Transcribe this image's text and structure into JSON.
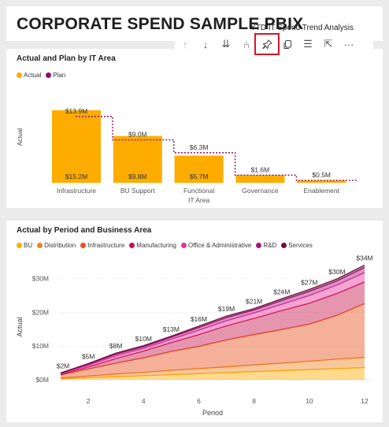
{
  "report": {
    "title": "CORPORATE SPEND SAMPLE PBIX",
    "subtitle": "YTD IT Spend Trend Analysis"
  },
  "toolbar": [
    {
      "name": "drill-up-icon",
      "glyph": "↑",
      "enabled": false
    },
    {
      "name": "drill-down-icon",
      "glyph": "↓",
      "enabled": true
    },
    {
      "name": "expand-all-icon",
      "glyph": "⇊",
      "enabled": true
    },
    {
      "name": "expand-hierarchy-icon",
      "glyph": "⑃",
      "enabled": true
    },
    {
      "name": "pin-visual-icon",
      "glyph": "pin",
      "enabled": true,
      "highlighted": true
    },
    {
      "name": "copy-visual-icon",
      "glyph": "copy",
      "enabled": true
    },
    {
      "name": "filter-icon",
      "glyph": "☰",
      "enabled": true
    },
    {
      "name": "focus-mode-icon",
      "glyph": "⇱",
      "enabled": true
    },
    {
      "name": "more-options-icon",
      "glyph": "···",
      "enabled": true
    }
  ],
  "visual1": {
    "title": "Actual and Plan by IT Area",
    "legend": [
      {
        "label": "Actual",
        "color": "#FFAC00"
      },
      {
        "label": "Plan",
        "color": "#8E1063"
      }
    ],
    "chart_data": {
      "type": "bar",
      "title": "Actual and Plan by IT Area",
      "ylabel": "Actual",
      "xlabel": "IT Area",
      "categories": [
        "Infrastructure",
        "BU Support",
        "Functional IT Area",
        "Governance",
        "Enablement"
      ],
      "category_lines": [
        [
          "Infrastructure"
        ],
        [
          "BU Support"
        ],
        [
          "Functional",
          "IT Area"
        ],
        [
          "Governance"
        ],
        [
          "Enablement"
        ]
      ],
      "series": [
        {
          "name": "Actual",
          "color": "#FFAC00",
          "values": [
            15.2,
            9.8,
            5.7,
            1.6,
            0.5
          ],
          "labels": [
            "$15.2M",
            "$9.8M",
            "$5.7M",
            "",
            ""
          ]
        },
        {
          "name": "Plan",
          "color": "#8E1063",
          "values": [
            13.9,
            9.0,
            6.3,
            1.6,
            0.5
          ],
          "labels": [
            "$13.9M",
            "$9.0M",
            "$6.3M",
            "$1.6M",
            "$0.5M"
          ]
        }
      ],
      "ylim": [
        0,
        15.2
      ]
    }
  },
  "visual2": {
    "title": "Actual by Period and Business Area",
    "legend": [
      {
        "label": "BU",
        "color": "#FFAC00"
      },
      {
        "label": "Distribution",
        "color": "#F0821E"
      },
      {
        "label": "Infrastructure",
        "color": "#E8501E"
      },
      {
        "label": "Manufacturing",
        "color": "#C8144C"
      },
      {
        "label": "Office & Administrative",
        "color": "#E6329B"
      },
      {
        "label": "R&D",
        "color": "#A5147D"
      },
      {
        "label": "Services",
        "color": "#6E0F3C"
      }
    ],
    "chart_data": {
      "type": "area",
      "title": "Actual by Period and Business Area",
      "xlabel": "Period",
      "ylabel": "Actual",
      "x": [
        1,
        2,
        3,
        4,
        5,
        6,
        7,
        8,
        9,
        10,
        11,
        12
      ],
      "xticks": [
        2,
        4,
        6,
        8,
        10,
        12
      ],
      "yticks": [
        0,
        10,
        20,
        30
      ],
      "ytick_labels": [
        "$0M",
        "$10M",
        "$20M",
        "$30M"
      ],
      "ylim": [
        0,
        36
      ],
      "totals_labels": [
        "$2M",
        "$5M",
        "$8M",
        "$10M",
        "$13M",
        "$16M",
        "$19M",
        "$21M",
        "$24M",
        "$27M",
        "$30M",
        "$34M"
      ],
      "series": [
        {
          "name": "BU",
          "color": "#FFAC00",
          "values": [
            0.3,
            0.6,
            0.9,
            1.2,
            1.5,
            1.8,
            2.1,
            2.4,
            2.7,
            3.0,
            3.3,
            3.6
          ]
        },
        {
          "name": "Distribution",
          "color": "#F0821E",
          "values": [
            0.2,
            0.5,
            0.8,
            1.0,
            1.3,
            1.5,
            1.7,
            2.0,
            2.2,
            2.5,
            2.8,
            3.0
          ]
        },
        {
          "name": "Infrastructure",
          "color": "#E8501E",
          "values": [
            0.9,
            2.1,
            3.2,
            4.3,
            5.6,
            6.6,
            8.0,
            9.0,
            10.0,
            11.0,
            13.0,
            16.0
          ]
        },
        {
          "name": "Manufacturing",
          "color": "#C8144C",
          "values": [
            0.2,
            0.6,
            1.4,
            2.0,
            2.6,
            3.5,
            4.2,
            4.8,
            5.6,
            6.2,
            6.5,
            6.4
          ]
        },
        {
          "name": "Office & Administrative",
          "color": "#E6329B",
          "values": [
            0.2,
            0.5,
            0.8,
            0.8,
            1.0,
            1.3,
            1.5,
            1.6,
            1.9,
            2.3,
            2.5,
            2.8
          ]
        },
        {
          "name": "R&D",
          "color": "#A5147D",
          "values": [
            0.1,
            0.3,
            0.5,
            0.5,
            0.6,
            0.8,
            0.9,
            0.9,
            1.1,
            1.2,
            1.2,
            1.5
          ]
        },
        {
          "name": "Services",
          "color": "#6E0F3C",
          "values": [
            0.1,
            0.2,
            0.3,
            0.3,
            0.3,
            0.4,
            0.5,
            0.4,
            0.5,
            0.6,
            0.6,
            0.7
          ]
        }
      ]
    }
  }
}
